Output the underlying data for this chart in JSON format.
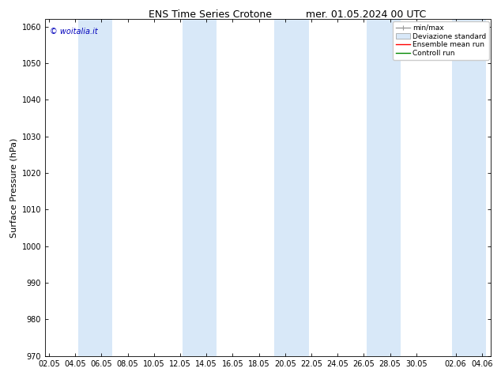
{
  "title": "ENS Time Series Crotone",
  "title2": "mer. 01.05.2024 00 UTC",
  "ylabel": "Surface Pressure (hPa)",
  "ylim": [
    970,
    1062
  ],
  "yticks": [
    970,
    980,
    990,
    1000,
    1010,
    1020,
    1030,
    1040,
    1050,
    1060
  ],
  "xtick_labels": [
    "02.05",
    "04.05",
    "06.05",
    "08.05",
    "10.05",
    "12.05",
    "14.05",
    "16.05",
    "18.05",
    "20.05",
    "22.05",
    "24.05",
    "26.05",
    "28.05",
    "30.05",
    "02.06",
    "04.06"
  ],
  "xtick_positions": [
    0,
    2,
    4,
    6,
    8,
    10,
    12,
    14,
    16,
    18,
    20,
    22,
    24,
    26,
    28,
    31,
    33
  ],
  "xlim": [
    -0.3,
    33.7
  ],
  "watermark": "© woitalia.it",
  "watermark_color": "#0000bb",
  "bg_color": "#ffffff",
  "band_color": "#d8e8f8",
  "band_alpha": 1.0,
  "band_centers": [
    3.5,
    11.5,
    18.5,
    25.5,
    32.0
  ],
  "band_half_widths": [
    1.3,
    1.3,
    1.3,
    1.3,
    1.3
  ],
  "legend_entries": [
    "min/max",
    "Deviazione standard",
    "Ensemble mean run",
    "Controll run"
  ],
  "legend_colors": [
    "#999999",
    "#bbbbbb",
    "#ff0000",
    "#008800"
  ],
  "title_fontsize": 9,
  "tick_fontsize": 7,
  "ylabel_fontsize": 8,
  "watermark_fontsize": 7,
  "legend_fontsize": 6.5
}
